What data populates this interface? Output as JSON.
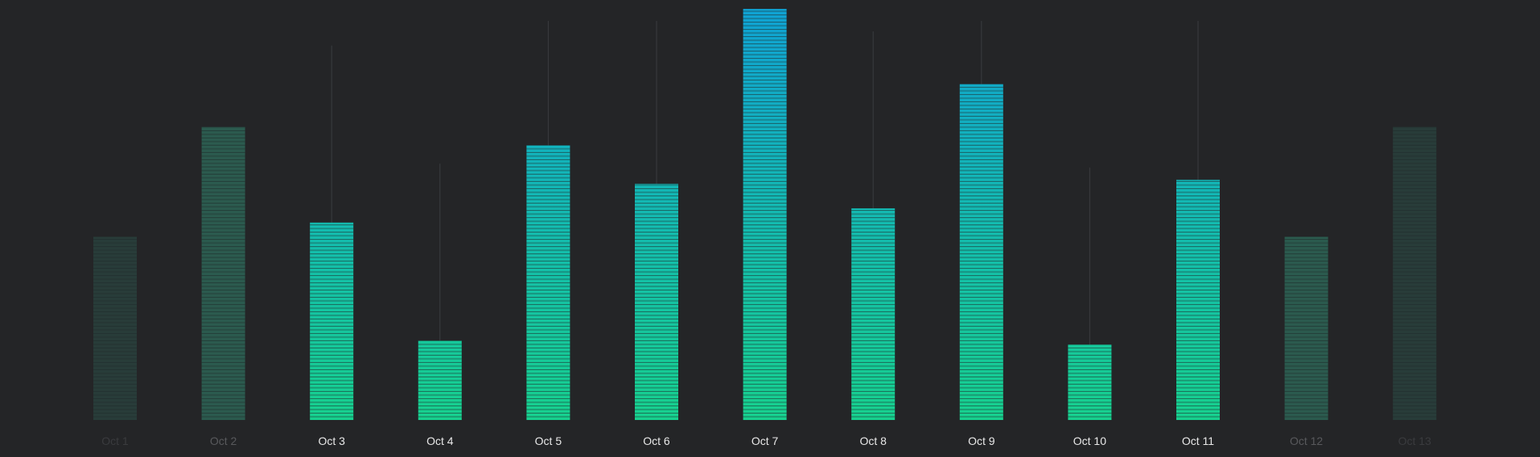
{
  "chart_data": {
    "type": "bar",
    "categories": [
      "Oct 1",
      "Oct 2",
      "Oct 3",
      "Oct 4",
      "Oct 5",
      "Oct 6",
      "Oct 7",
      "Oct 8",
      "Oct 9",
      "Oct 10",
      "Oct 11",
      "Oct 12",
      "Oct 13"
    ],
    "values": [
      45,
      72,
      48.5,
      19.5,
      67.5,
      58,
      101,
      52,
      82.5,
      18.5,
      59,
      45,
      72
    ],
    "emphasis": [
      0.12,
      0.35,
      1,
      1,
      1,
      1,
      1,
      1,
      1,
      1,
      1,
      0.35,
      0.12
    ],
    "ylim": [
      0,
      102
    ],
    "grid": false,
    "legend": "none",
    "colors": {
      "background": "#242527",
      "bar_bottom": "#17d08e",
      "bar_top": "#10a1d3",
      "bar_dim": "#2b5a4e",
      "bar_faint": "#283c39",
      "stripe": "#1e2a2a",
      "guide_line": "#3a3c3f",
      "label_active": "#e8e8e8",
      "label_dim": "#58595c",
      "label_faint": "#3a3b3e"
    }
  }
}
